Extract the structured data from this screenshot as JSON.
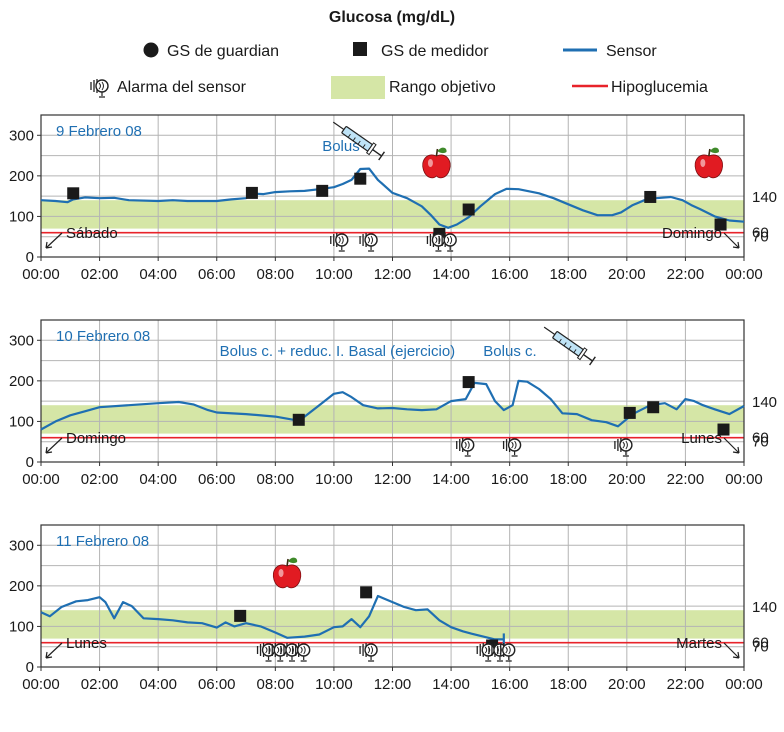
{
  "chart_data": {
    "type": "line",
    "title": "Glucosa (mg/dL)",
    "legend": {
      "guardian": "GS de guardian",
      "meter": "GS de medidor",
      "sensor": "Sensor",
      "alarm": "Alarma del sensor",
      "target": "Rango objetivo",
      "hypo": "Hipoglucemia"
    },
    "colors": {
      "sensor": "#1f6fb2",
      "target": "#d5e6a6",
      "hypo": "#e8232a",
      "grid": "#b4b4b4",
      "text_blue": "#1f6fb2"
    },
    "x_ticks": [
      "00:00",
      "02:00",
      "04:00",
      "06:00",
      "08:00",
      "10:00",
      "12:00",
      "14:00",
      "16:00",
      "18:00",
      "20:00",
      "22:00",
      "00:00"
    ],
    "y_ticks": [
      "0",
      "100",
      "200",
      "300"
    ],
    "ylim": [
      0,
      350
    ],
    "xlim": [
      0,
      24
    ],
    "target_range": [
      70,
      140
    ],
    "hypo_level": 60,
    "right_labels": [
      "140",
      "70",
      "60"
    ],
    "panels": [
      {
        "date": "9 Febrero 08",
        "start_day": "Sábado",
        "end_day": "Domingo",
        "bolus_label": "Bolus c.",
        "bolus_label_time": 9.6,
        "syringe_time": 10.9,
        "sensor": [
          [
            0,
            140
          ],
          [
            0.5,
            138
          ],
          [
            0.9,
            135
          ],
          [
            1.1,
            142
          ],
          [
            1.5,
            147
          ],
          [
            2,
            145
          ],
          [
            2.5,
            146
          ],
          [
            3,
            140
          ],
          [
            4,
            138
          ],
          [
            4.5,
            140
          ],
          [
            5,
            138
          ],
          [
            6,
            138
          ],
          [
            6.5,
            142
          ],
          [
            7,
            145
          ],
          [
            7.3,
            156
          ],
          [
            7.6,
            155
          ],
          [
            8,
            160
          ],
          [
            8.5,
            162
          ],
          [
            9,
            163
          ],
          [
            9.5,
            167
          ],
          [
            10,
            172
          ],
          [
            10.3,
            180
          ],
          [
            10.6,
            190
          ],
          [
            10.9,
            217
          ],
          [
            11.2,
            218
          ],
          [
            11.5,
            190
          ],
          [
            12,
            158
          ],
          [
            12.5,
            145
          ],
          [
            13,
            125
          ],
          [
            13.3,
            104
          ],
          [
            13.6,
            80
          ],
          [
            13.9,
            72
          ],
          [
            14.2,
            80
          ],
          [
            14.6,
            98
          ],
          [
            15,
            125
          ],
          [
            15.5,
            155
          ],
          [
            15.9,
            168
          ],
          [
            16.3,
            167
          ],
          [
            17,
            157
          ],
          [
            17.5,
            145
          ],
          [
            18,
            130
          ],
          [
            18.5,
            115
          ],
          [
            19,
            103
          ],
          [
            19.5,
            103
          ],
          [
            19.8,
            110
          ],
          [
            20.2,
            128
          ],
          [
            20.6,
            140
          ],
          [
            21,
            145
          ],
          [
            21.5,
            148
          ],
          [
            21.9,
            140
          ],
          [
            22.2,
            128
          ],
          [
            22.5,
            118
          ],
          [
            23,
            100
          ],
          [
            23.5,
            90
          ],
          [
            24,
            87
          ]
        ],
        "guardian": [],
        "meter": [
          [
            1.1,
            157
          ],
          [
            7.2,
            158
          ],
          [
            9.6,
            163
          ],
          [
            10.9,
            193
          ],
          [
            13.6,
            57
          ],
          [
            14.6,
            117
          ],
          [
            20.8,
            148
          ],
          [
            23.2,
            80
          ]
        ],
        "alarms": [
          10.2,
          11.2,
          13.5,
          13.9
        ],
        "apples": [
          13.5,
          22.8
        ]
      },
      {
        "date": "10 Febrero 08",
        "start_day": "Domingo",
        "end_day": "Lunes",
        "bolus_label": "Bolus c. + reduc. I. Basal (ejercicio)",
        "bolus_label_time": 6.1,
        "bolus_label2": "Bolus c.",
        "bolus_label2_time": 15.1,
        "syringe_time": 18.1,
        "sensor": [
          [
            0,
            80
          ],
          [
            0.5,
            100
          ],
          [
            1,
            115
          ],
          [
            1.5,
            125
          ],
          [
            2,
            135
          ],
          [
            3,
            140
          ],
          [
            4,
            145
          ],
          [
            4.7,
            148
          ],
          [
            5.2,
            142
          ],
          [
            5.7,
            128
          ],
          [
            6,
            122
          ],
          [
            7,
            118
          ],
          [
            8,
            112
          ],
          [
            8.7,
            103
          ],
          [
            9,
            112
          ],
          [
            9.5,
            140
          ],
          [
            10,
            168
          ],
          [
            10.3,
            172
          ],
          [
            10.6,
            160
          ],
          [
            11,
            140
          ],
          [
            11.5,
            132
          ],
          [
            12,
            133
          ],
          [
            12.5,
            130
          ],
          [
            13,
            128
          ],
          [
            13.5,
            130
          ],
          [
            14,
            150
          ],
          [
            14.5,
            155
          ],
          [
            14.8,
            195
          ],
          [
            15.2,
            192
          ],
          [
            15.5,
            150
          ],
          [
            15.8,
            128
          ],
          [
            16.1,
            140
          ],
          [
            16.3,
            200
          ],
          [
            16.6,
            198
          ],
          [
            17,
            180
          ],
          [
            17.4,
            155
          ],
          [
            17.8,
            120
          ],
          [
            18.3,
            118
          ],
          [
            18.8,
            103
          ],
          [
            19.3,
            98
          ],
          [
            19.7,
            88
          ],
          [
            20.2,
            118
          ],
          [
            20.8,
            140
          ],
          [
            21.3,
            145
          ],
          [
            21.7,
            130
          ],
          [
            22,
            155
          ],
          [
            22.3,
            150
          ],
          [
            22.6,
            140
          ],
          [
            23,
            130
          ],
          [
            23.5,
            118
          ],
          [
            24,
            138
          ]
        ],
        "guardian": [],
        "meter": [
          [
            8.8,
            104
          ],
          [
            14.6,
            197
          ],
          [
            20.1,
            121
          ],
          [
            20.9,
            135
          ],
          [
            23.3,
            80
          ]
        ],
        "alarms": [
          14.5,
          16.1,
          19.9
        ],
        "apples": []
      },
      {
        "date": "11 Febrero 08",
        "start_day": "Lunes",
        "end_day": "Martes",
        "bolus_label": "",
        "bolus_label_time": 0,
        "syringe_time": null,
        "sensor": [
          [
            0,
            135
          ],
          [
            0.3,
            125
          ],
          [
            0.7,
            148
          ],
          [
            1.2,
            162
          ],
          [
            1.6,
            165
          ],
          [
            2,
            172
          ],
          [
            2.2,
            160
          ],
          [
            2.5,
            120
          ],
          [
            2.8,
            160
          ],
          [
            3.1,
            150
          ],
          [
            3.5,
            120
          ],
          [
            4,
            118
          ],
          [
            4.5,
            115
          ],
          [
            5,
            110
          ],
          [
            5.5,
            108
          ],
          [
            6,
            97
          ],
          [
            6.3,
            110
          ],
          [
            6.6,
            100
          ],
          [
            7,
            108
          ],
          [
            7.5,
            100
          ],
          [
            8,
            85
          ],
          [
            8.4,
            72
          ],
          [
            9,
            75
          ],
          [
            9.5,
            80
          ],
          [
            10,
            98
          ],
          [
            10.3,
            100
          ],
          [
            10.6,
            118
          ],
          [
            10.9,
            98
          ],
          [
            11.2,
            125
          ],
          [
            11.5,
            175
          ],
          [
            12,
            160
          ],
          [
            12.4,
            148
          ],
          [
            12.8,
            140
          ],
          [
            13.2,
            142
          ],
          [
            13.6,
            115
          ],
          [
            14,
            98
          ],
          [
            14.4,
            88
          ],
          [
            14.7,
            82
          ],
          [
            15.1,
            75
          ],
          [
            15.5,
            68
          ],
          [
            15.8,
            68
          ]
        ],
        "guardian": [],
        "meter": [
          [
            6.8,
            126
          ],
          [
            11.1,
            184
          ],
          [
            15.4,
            53
          ]
        ],
        "alarms": [
          7.7,
          8.1,
          8.5,
          8.9,
          11.2,
          15.2,
          15.6,
          15.9
        ],
        "apples": [
          8.4
        ]
      }
    ]
  }
}
